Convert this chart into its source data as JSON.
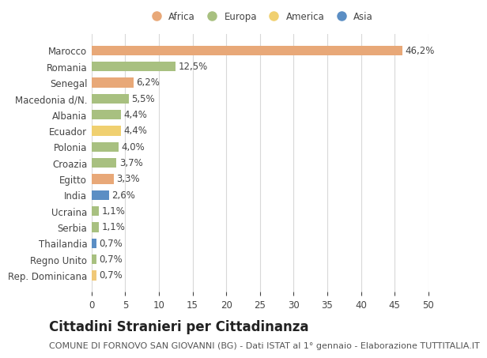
{
  "countries": [
    "Rep. Dominicana",
    "Regno Unito",
    "Thailandia",
    "Serbia",
    "Ucraina",
    "India",
    "Egitto",
    "Croazia",
    "Polonia",
    "Ecuador",
    "Albania",
    "Macedonia d/N.",
    "Senegal",
    "Romania",
    "Marocco"
  ],
  "values": [
    0.7,
    0.7,
    0.7,
    1.1,
    1.1,
    2.6,
    3.3,
    3.7,
    4.0,
    4.4,
    4.4,
    5.5,
    6.2,
    12.5,
    46.2
  ],
  "labels": [
    "0,7%",
    "0,7%",
    "0,7%",
    "1,1%",
    "1,1%",
    "2,6%",
    "3,3%",
    "3,7%",
    "4,0%",
    "4,4%",
    "4,4%",
    "5,5%",
    "6,2%",
    "12,5%",
    "46,2%"
  ],
  "colors": [
    "#f0c878",
    "#a8c080",
    "#5b8ec4",
    "#a8c080",
    "#a8c080",
    "#5b8ec4",
    "#e8a878",
    "#a8c080",
    "#a8c080",
    "#f0d070",
    "#a8c080",
    "#a8c080",
    "#e8a878",
    "#a8c080",
    "#e8a878"
  ],
  "continent": [
    "America",
    "Europa",
    "Asia",
    "Europa",
    "Europa",
    "Asia",
    "Africa",
    "Europa",
    "Europa",
    "America",
    "Europa",
    "Europa",
    "Africa",
    "Europa",
    "Africa"
  ],
  "legend_labels": [
    "Africa",
    "Europa",
    "America",
    "Asia"
  ],
  "legend_colors": [
    "#e8a878",
    "#a8c080",
    "#f0d070",
    "#5b8ec4"
  ],
  "title": "Cittadini Stranieri per Cittadinanza",
  "subtitle": "COMUNE DI FORNOVO SAN GIOVANNI (BG) - Dati ISTAT al 1° gennaio - Elaborazione TUTTITALIA.IT",
  "xlim": [
    0,
    50
  ],
  "xticks": [
    0,
    5,
    10,
    15,
    20,
    25,
    30,
    35,
    40,
    45,
    50
  ],
  "background_color": "#ffffff",
  "grid_color": "#d8d8d8",
  "bar_height": 0.6,
  "title_fontsize": 12,
  "subtitle_fontsize": 8,
  "label_fontsize": 8.5,
  "tick_fontsize": 8.5
}
